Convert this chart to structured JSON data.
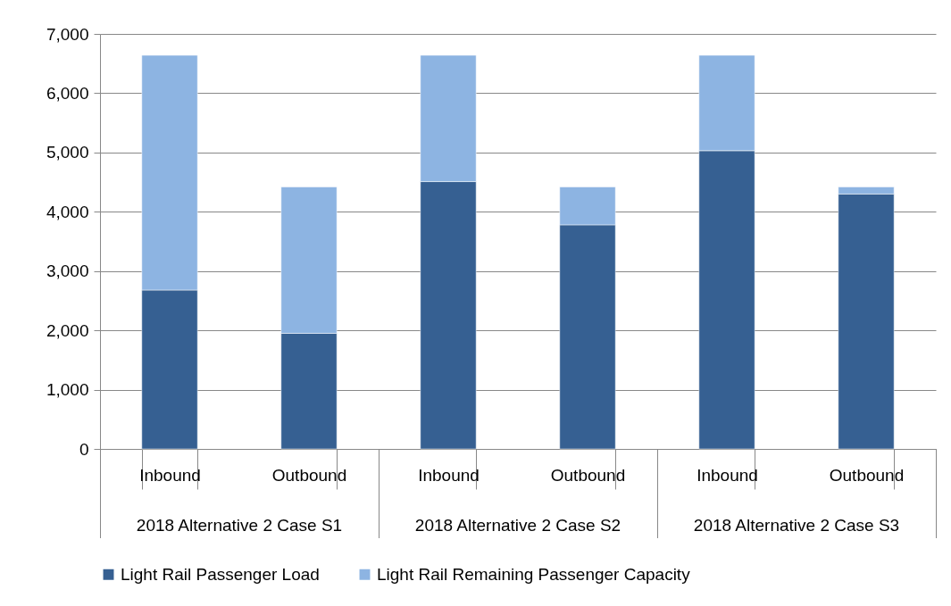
{
  "chart_data": {
    "type": "bar",
    "stacked": true,
    "categories": [
      "Inbound",
      "Outbound",
      "Inbound",
      "Outbound",
      "Inbound",
      "Outbound"
    ],
    "series": [
      {
        "name": "Light Rail Passenger Load",
        "color": "#366092",
        "values": [
          2680,
          1950,
          4510,
          3780,
          5030,
          4300
        ]
      },
      {
        "name": "Light Rail Remaining Passenger Capacity",
        "color": "#8db4e2",
        "values": [
          3960,
          2470,
          2130,
          640,
          1610,
          120
        ]
      }
    ],
    "annotations": [
      "2018 Alternative 2 Case S1",
      "2018 Alternative 2 Case S2",
      "2018 Alternative 2 Case S3"
    ],
    "ylim": [
      0,
      7000
    ],
    "yticks": [
      0,
      {
        "value": 1000,
        "label": "1,000"
      },
      {
        "value": 2000,
        "label": "2,000"
      },
      {
        "value": 3000,
        "label": "3,000"
      },
      {
        "value": 4000,
        "label": "4,000"
      },
      {
        "value": 5000,
        "label": "5,000"
      },
      {
        "value": 6000,
        "label": "6,000"
      },
      {
        "value": 7000,
        "label": "7,000"
      }
    ],
    "grid": "y",
    "legend": "bottom"
  }
}
